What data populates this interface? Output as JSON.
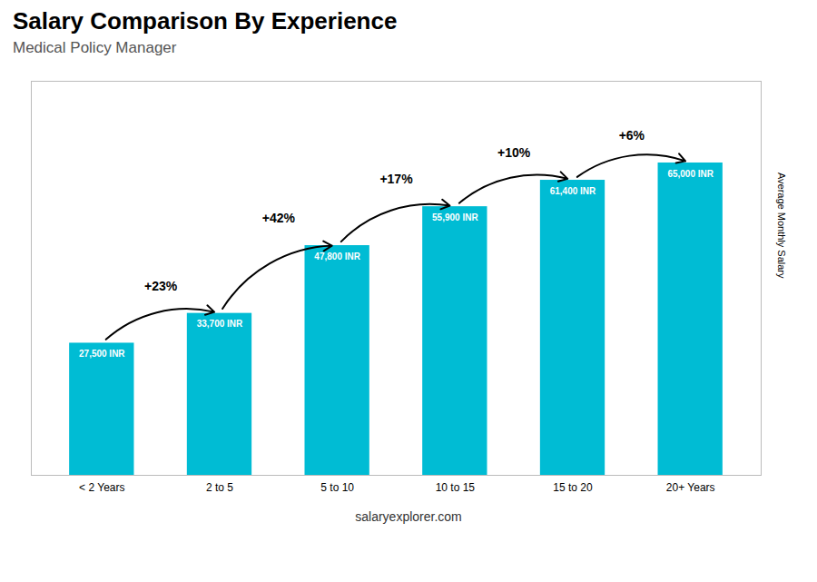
{
  "chart_data": {
    "type": "bar",
    "title": "Salary Comparison By Experience",
    "subtitle": "Medical Policy Manager",
    "ylabel": "Average Monthly Salary",
    "categories": [
      "< 2 Years",
      "2 to 5",
      "5 to 10",
      "10 to 15",
      "15 to 20",
      "20+ Years"
    ],
    "values": [
      27500,
      33700,
      47800,
      55900,
      61400,
      65000
    ],
    "value_labels": [
      "27,500 INR",
      "33,700 INR",
      "47,800 INR",
      "55,900 INR",
      "61,400 INR",
      "65,000 INR"
    ],
    "data_labels": true,
    "annotations": [
      "+23%",
      "+42%",
      "+17%",
      "+10%",
      "+6%"
    ],
    "caption": "salaryexplorer.com",
    "color": "#00bcd4",
    "ylim": [
      0,
      82000
    ],
    "tick_labels": "x",
    "grid": false
  }
}
